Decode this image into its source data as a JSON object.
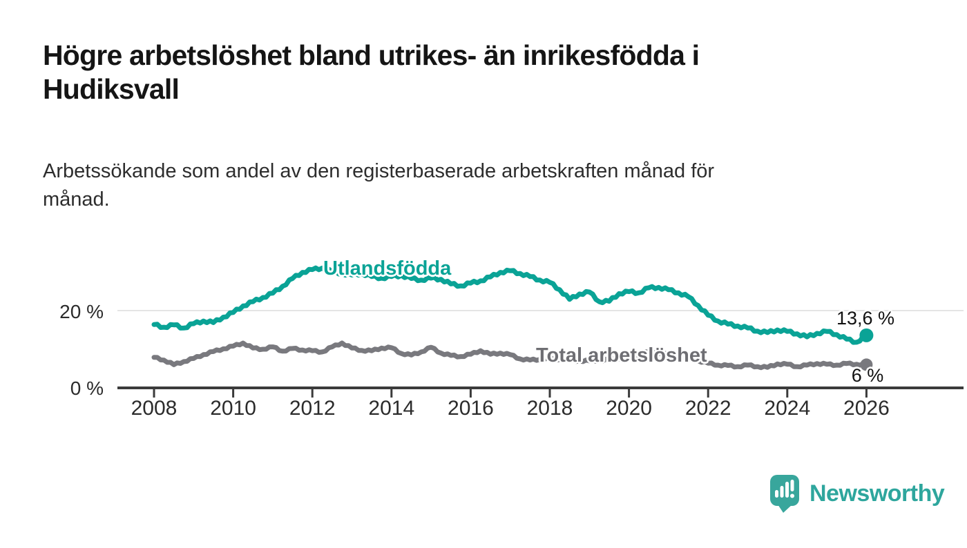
{
  "header": {
    "title": "Högre arbetslöshet bland utrikes- än inrikesfödda i\nHudiksvall",
    "subtitle": "Arbetssökande som andel av den registerbaserade arbetskraften månad för\nmånad."
  },
  "chart_data": {
    "type": "line",
    "title": "Högre arbetslöshet bland utrikes- än inrikesfödda i Hudiksvall",
    "subtitle": "Arbetssökande som andel av den registerbaserade arbetskraften månad för månad.",
    "xlabel": "",
    "ylabel": "",
    "x_unit": "year",
    "grid": "horizontal-only",
    "legend_position": "inline-labels",
    "ylim": [
      0,
      34
    ],
    "x_ticks": [
      "2008",
      "2010",
      "2012",
      "2014",
      "2016",
      "2018",
      "2020",
      "2022",
      "2024",
      "2026"
    ],
    "y_axis": {
      "gridlines": [
        {
          "value": 20,
          "label": "20 %"
        },
        {
          "value": 0,
          "label": "0 %"
        }
      ]
    },
    "x": [
      2008,
      2008.25,
      2008.5,
      2008.75,
      2009,
      2009.25,
      2009.5,
      2009.75,
      2010,
      2010.25,
      2010.5,
      2010.75,
      2011,
      2011.25,
      2011.5,
      2011.75,
      2012,
      2012.25,
      2012.5,
      2012.75,
      2013,
      2013.25,
      2013.5,
      2013.75,
      2014,
      2014.25,
      2014.5,
      2014.75,
      2015,
      2015.25,
      2015.5,
      2015.75,
      2016,
      2016.25,
      2016.5,
      2016.75,
      2017,
      2017.25,
      2017.5,
      2017.75,
      2018,
      2018.25,
      2018.5,
      2018.75,
      2019,
      2019.25,
      2019.5,
      2019.75,
      2020,
      2020.25,
      2020.5,
      2020.75,
      2021,
      2021.25,
      2021.5,
      2021.75,
      2022,
      2022.25,
      2022.5,
      2022.75,
      2023,
      2023.25,
      2023.5,
      2023.75,
      2024,
      2024.25,
      2024.5,
      2024.75,
      2025,
      2025.25,
      2025.5,
      2025.75,
      2026
    ],
    "series": [
      {
        "name": "Utlandsfödda",
        "color": "#0aa396",
        "end_label": "13,6 %",
        "end_value": 13.6,
        "values": [
          16.4,
          15.7,
          16.3,
          15.5,
          16.6,
          17.3,
          16.9,
          18.3,
          19.5,
          21.2,
          22.3,
          23.4,
          24.5,
          26.3,
          28.3,
          29.9,
          30.6,
          31,
          30.1,
          29.6,
          29.2,
          29.6,
          28.8,
          28.4,
          28.8,
          29.1,
          28.3,
          27.9,
          28.4,
          28.1,
          26.9,
          26.4,
          27.1,
          27.7,
          28.7,
          29.9,
          30.3,
          29.6,
          28.8,
          27.9,
          27.3,
          25.4,
          22.9,
          24.3,
          24.8,
          22.3,
          22.4,
          24.4,
          24.9,
          24.6,
          25.9,
          26,
          25.4,
          24.6,
          23.6,
          21.3,
          18.8,
          17.3,
          16.5,
          16,
          15.5,
          14.7,
          14.3,
          15,
          14.6,
          14,
          13.2,
          14.1,
          14.6,
          13.8,
          12.6,
          11.8,
          13.6
        ]
      },
      {
        "name": "Total arbetslöshet",
        "color": "#79797e",
        "end_label": "6 %",
        "end_value": 6,
        "values": [
          7.9,
          7.2,
          6,
          6.8,
          7.6,
          8.6,
          9.4,
          10.1,
          10.8,
          11.6,
          10.3,
          10,
          10.6,
          9.5,
          10.2,
          9.8,
          9.6,
          9.3,
          10.6,
          11.6,
          10.3,
          9.7,
          9.6,
          10.3,
          10.4,
          8.9,
          8.5,
          9.3,
          10.5,
          9,
          8.4,
          8.1,
          8.7,
          9.6,
          8.7,
          9,
          8.6,
          7.5,
          7.2,
          7.4,
          7.5,
          7.3,
          7.1,
          7,
          7,
          7.1,
          7.3,
          7.5,
          7.8,
          8.8,
          9.3,
          9,
          8.6,
          8.1,
          7.6,
          7,
          6.4,
          5.9,
          5.8,
          5.5,
          5.9,
          5.5,
          5.3,
          6.2,
          6.1,
          5.5,
          5.9,
          6.3,
          6.1,
          5.9,
          6.3,
          6.1,
          6
        ]
      }
    ]
  },
  "axis_colors": {
    "axis_line": "#3b3b3b",
    "gridline": "#e4e4e4",
    "tick_text": "#2b2b2b"
  },
  "branding": {
    "name": "Newsworthy",
    "logo_icon": "bar-chart-speech-bubble-icon",
    "color": "#2ea69d"
  }
}
